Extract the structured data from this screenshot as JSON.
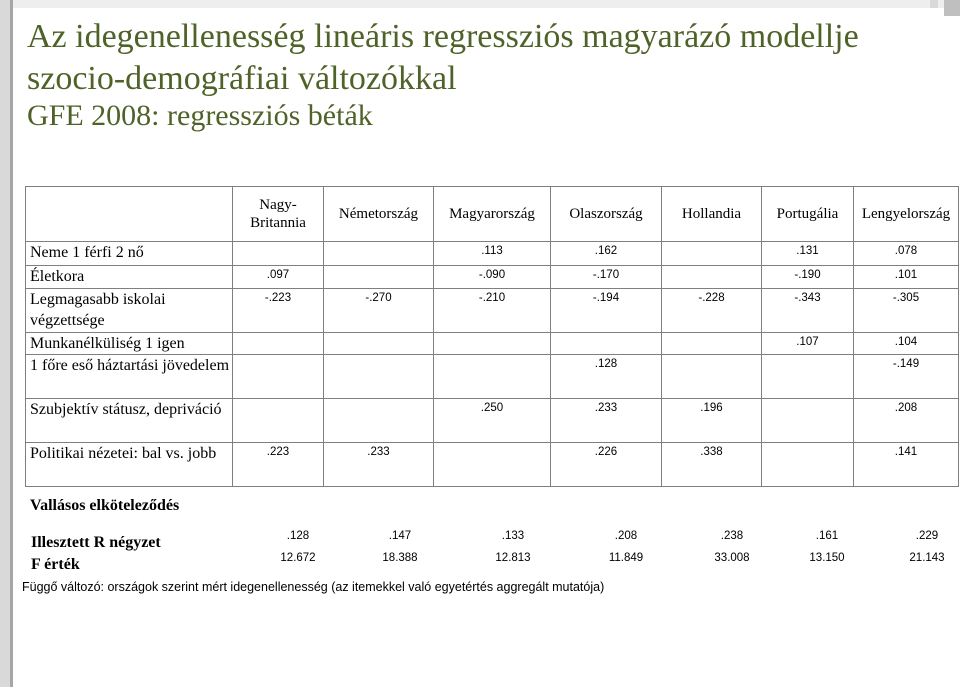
{
  "title": "Az idegenellenesség lineáris regressziós magyarázó modellje szocio-demográfiai változókkal",
  "subtitle": "GFE 2008: regressziós béták",
  "columns": [
    "Nagy-Britannia",
    "Németország",
    "Magyarország",
    "Olaszország",
    "Hollandia",
    "Portugália",
    "Lengyelország"
  ],
  "rows": [
    {
      "label": "Neme 1 férfi 2 nő",
      "values": [
        "",
        "",
        ".113",
        ".162",
        "",
        ".131",
        ".078"
      ]
    },
    {
      "label": "Életkora",
      "values": [
        ".097",
        "",
        "-.090",
        "-.170",
        "",
        "-.190",
        ".101"
      ]
    },
    {
      "label": "Legmagasabb iskolai végzettsége",
      "values": [
        "-.223",
        "-.270",
        "-.210",
        "-.194",
        "-.228",
        "-.343",
        "-.305"
      ]
    },
    {
      "label": "Munkanélküliség 1 igen",
      "values": [
        "",
        "",
        "",
        "",
        "",
        ".107",
        ".104"
      ]
    },
    {
      "label": " 1 főre eső háztartási jövedelem",
      "values": [
        "",
        "",
        "",
        ".128",
        "",
        "",
        "-.149"
      ]
    },
    {
      "label": "Szubjektív státusz, depriváció",
      "values": [
        "",
        "",
        ".250",
        ".233",
        ".196",
        "",
        ".208"
      ]
    },
    {
      "label": "Politikai nézetei: bal vs. jobb",
      "values": [
        ".223",
        ".233",
        "",
        ".226",
        ".338",
        "",
        ".141"
      ]
    }
  ],
  "religion_label": "Vallásos elköteleződés",
  "r2": {
    "label": "Illesztett  R négyzet",
    "values": [
      ".128",
      ".147",
      ".133",
      ".208",
      ".238",
      ".161",
      ".229"
    ]
  },
  "f": {
    "label": "F érték",
    "values": [
      "12.672",
      "18.388",
      "12.813",
      "11.849",
      "33.008",
      "13.150",
      "21.143"
    ]
  },
  "footnote": "Függő változó: országok szerint mért idegenellenesség (az itemekkel való egyetértés aggregált mutatója)"
}
